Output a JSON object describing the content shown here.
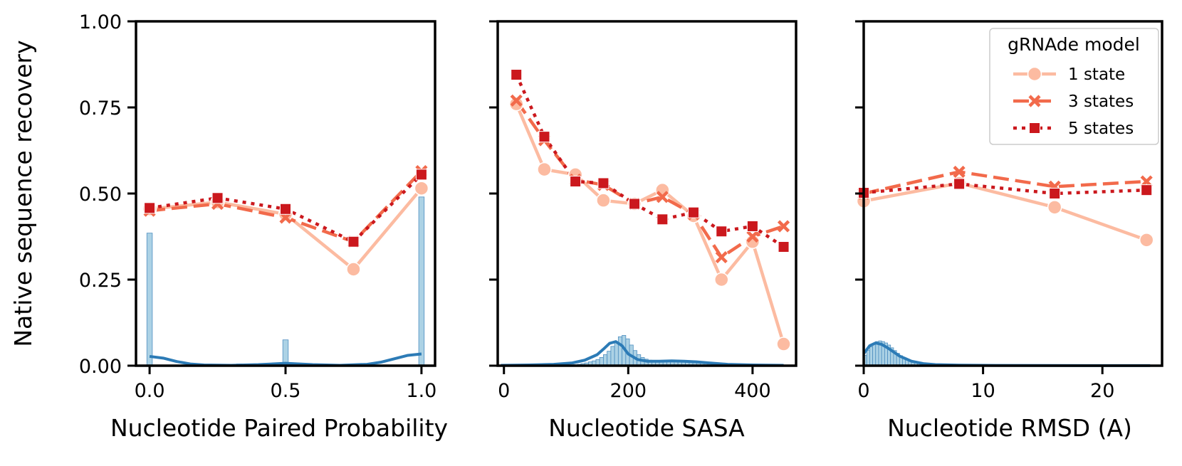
{
  "colors": {
    "one_state": "#fcbba1",
    "three_states": "#f26a4b",
    "five_states": "#cb181d",
    "hist_fill": "#9ecae1",
    "hist_edge": "#4f8fc0",
    "kde": "#2c7bb6"
  },
  "legend": {
    "title": "gRNAde model",
    "entries": [
      {
        "key": "one_state",
        "label": "1 state",
        "marker": "circle",
        "dash": "solid"
      },
      {
        "key": "three_states",
        "label": "3 states",
        "marker": "x",
        "dash": "dashed"
      },
      {
        "key": "five_states",
        "label": "5 states",
        "marker": "square",
        "dash": "dotted"
      }
    ]
  },
  "chart_data": [
    {
      "type": "line",
      "xlabel": "Nucleotide Paired Probability",
      "ylabel": "Native sequence recovery",
      "xlim": [
        -0.05,
        1.05
      ],
      "ylim": [
        0,
        1
      ],
      "xticks": [
        0,
        0.5,
        1
      ],
      "xtick_labels": [
        "0.0",
        "0.5",
        "1.0"
      ],
      "yticks": [
        0,
        0.25,
        0.5,
        0.75,
        1
      ],
      "ytick_labels": [
        "0.00",
        "0.25",
        "0.50",
        "0.75",
        "1.00"
      ],
      "series": [
        {
          "key": "one_state",
          "name": "1 state",
          "x": [
            0,
            0.25,
            0.5,
            0.75,
            1
          ],
          "y": [
            0.455,
            0.475,
            0.44,
            0.28,
            0.515
          ]
        },
        {
          "key": "three_states",
          "name": "3 states",
          "x": [
            0,
            0.25,
            0.5,
            0.75,
            1
          ],
          "y": [
            0.45,
            0.47,
            0.43,
            0.36,
            0.565
          ]
        },
        {
          "key": "five_states",
          "name": "5 states",
          "x": [
            0,
            0.25,
            0.5,
            0.75,
            1
          ],
          "y": [
            0.458,
            0.487,
            0.455,
            0.36,
            0.555
          ]
        }
      ],
      "histogram": {
        "bars": [
          {
            "x0": -0.01,
            "x1": 0.01,
            "h": 0.385
          },
          {
            "x0": 0.32,
            "x1": 0.34,
            "h": 0.005
          },
          {
            "x0": 0.49,
            "x1": 0.51,
            "h": 0.075
          },
          {
            "x0": 0.66,
            "x1": 0.68,
            "h": 0.004
          },
          {
            "x0": 0.99,
            "x1": 1.01,
            "h": 0.49
          }
        ]
      },
      "kde": {
        "x": [
          0,
          0.05,
          0.1,
          0.15,
          0.2,
          0.3,
          0.4,
          0.5,
          0.6,
          0.7,
          0.8,
          0.85,
          0.9,
          0.95,
          1
        ],
        "y": [
          0.027,
          0.022,
          0.012,
          0.005,
          0.002,
          0.001,
          0.003,
          0.007,
          0.003,
          0.001,
          0.004,
          0.01,
          0.02,
          0.03,
          0.034
        ]
      }
    },
    {
      "type": "line",
      "xlabel": "Nucleotide SASA",
      "ylabel": "",
      "xlim": [
        -10,
        470
      ],
      "ylim": [
        0,
        1
      ],
      "xticks": [
        0,
        200,
        400
      ],
      "xtick_labels": [
        "0",
        "200",
        "400"
      ],
      "series": [
        {
          "key": "one_state",
          "name": "1 state",
          "x": [
            20,
            65,
            115,
            160,
            210,
            255,
            305,
            350,
            400,
            450
          ],
          "y": [
            0.76,
            0.57,
            0.555,
            0.48,
            0.47,
            0.51,
            0.435,
            0.25,
            0.36,
            0.063
          ]
        },
        {
          "key": "three_states",
          "name": "3 states",
          "x": [
            20,
            65,
            115,
            160,
            210,
            255,
            305,
            350,
            400,
            450
          ],
          "y": [
            0.77,
            0.655,
            0.54,
            0.525,
            0.47,
            0.49,
            0.44,
            0.315,
            0.375,
            0.405
          ]
        },
        {
          "key": "five_states",
          "name": "5 states",
          "x": [
            20,
            65,
            115,
            160,
            210,
            255,
            305,
            350,
            400,
            450
          ],
          "y": [
            0.845,
            0.665,
            0.535,
            0.53,
            0.47,
            0.425,
            0.445,
            0.39,
            0.405,
            0.345
          ]
        }
      ],
      "histogram": {
        "start": 100,
        "bin_width": 6,
        "heights": [
          0.001,
          0.002,
          0.003,
          0.004,
          0.006,
          0.008,
          0.011,
          0.014,
          0.018,
          0.024,
          0.032,
          0.042,
          0.056,
          0.07,
          0.084,
          0.088,
          0.078,
          0.06,
          0.044,
          0.032,
          0.024,
          0.019,
          0.016,
          0.014,
          0.013,
          0.012,
          0.012,
          0.013,
          0.013,
          0.014,
          0.014,
          0.013,
          0.013,
          0.012,
          0.011,
          0.01,
          0.009,
          0.008,
          0.007,
          0.006,
          0.005,
          0.004,
          0.004,
          0.003,
          0.003,
          0.002,
          0.002,
          0.001,
          0.001,
          0.001
        ]
      },
      "kde": {
        "x": [
          -5,
          40,
          80,
          110,
          130,
          150,
          160,
          170,
          180,
          190,
          200,
          215,
          230,
          250,
          270,
          290,
          310,
          330,
          360,
          400,
          450
        ],
        "y": [
          0.001,
          0.002,
          0.004,
          0.008,
          0.016,
          0.032,
          0.048,
          0.065,
          0.07,
          0.058,
          0.034,
          0.018,
          0.013,
          0.013,
          0.014,
          0.013,
          0.011,
          0.008,
          0.004,
          0.002,
          0.001
        ]
      }
    },
    {
      "type": "line",
      "xlabel": "Nucleotide RMSD (A)",
      "ylabel": "",
      "xlim": [
        0,
        25
      ],
      "ylim": [
        0,
        1
      ],
      "xticks": [
        0,
        10,
        20
      ],
      "xtick_labels": [
        "0",
        "10",
        "20"
      ],
      "series": [
        {
          "key": "one_state",
          "name": "1 state",
          "x": [
            0,
            8,
            16,
            23.7
          ],
          "y": [
            0.478,
            0.53,
            0.46,
            0.365
          ]
        },
        {
          "key": "three_states",
          "name": "3 states",
          "x": [
            0,
            8,
            16,
            23.7
          ],
          "y": [
            0.5,
            0.563,
            0.52,
            0.535
          ]
        },
        {
          "key": "five_states",
          "name": "5 states",
          "x": [
            0,
            8,
            16,
            23.7
          ],
          "y": [
            0.502,
            0.528,
            0.5,
            0.51
          ]
        }
      ],
      "histogram": {
        "start": 0,
        "bin_width": 0.25,
        "heights": [
          0.03,
          0.045,
          0.055,
          0.065,
          0.07,
          0.072,
          0.07,
          0.066,
          0.06,
          0.052,
          0.044,
          0.036,
          0.029,
          0.023,
          0.018,
          0.014,
          0.011,
          0.009,
          0.007,
          0.006,
          0.005,
          0.004,
          0.004,
          0.003,
          0.003,
          0.002,
          0.002,
          0.002,
          0.001,
          0.001,
          0.001,
          0.001
        ]
      },
      "kde": {
        "x": [
          0,
          0.5,
          1,
          1.5,
          2,
          3,
          4,
          5,
          6,
          8,
          10,
          15,
          20,
          24
        ],
        "y": [
          0.035,
          0.058,
          0.066,
          0.062,
          0.052,
          0.028,
          0.013,
          0.006,
          0.003,
          0.0015,
          0.001,
          0.0005,
          0.0003,
          0.0002
        ]
      }
    }
  ]
}
